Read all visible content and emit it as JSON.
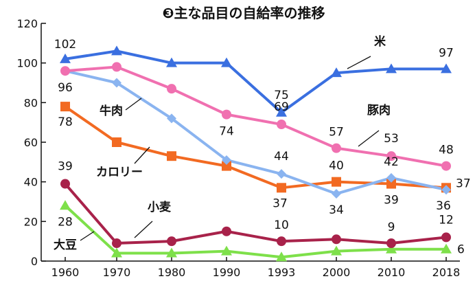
{
  "chart_data": {
    "type": "line",
    "title": "❸主な品目の自給率の推移",
    "x": [
      "1960",
      "1970",
      "1980",
      "1990",
      "1993",
      "2000",
      "2010",
      "2018"
    ],
    "ylim": [
      0,
      120
    ],
    "yticks": [
      "0",
      "20",
      "40",
      "60",
      "80",
      "100",
      "120"
    ],
    "grid": false,
    "series": [
      {
        "name": "米",
        "color": "#3a6fe0",
        "marker": "triangle",
        "values": [
          102,
          106,
          100,
          100,
          75,
          95,
          97,
          97
        ]
      },
      {
        "name": "豚肉",
        "color": "#f070b0",
        "marker": "circle",
        "values": [
          96,
          98,
          87,
          74,
          69,
          57,
          53,
          48
        ]
      },
      {
        "name": "牛肉",
        "color": "#8ab4f0",
        "marker": "diamond",
        "values": [
          96,
          90,
          72,
          51,
          44,
          34,
          42,
          36
        ]
      },
      {
        "name": "カロリー",
        "color": "#f26a22",
        "marker": "square",
        "values": [
          78,
          60,
          53,
          48,
          37,
          40,
          39,
          37
        ]
      },
      {
        "name": "小麦",
        "color": "#a8224a",
        "marker": "circle",
        "values": [
          39,
          9,
          10,
          15,
          10,
          11,
          9,
          12
        ]
      },
      {
        "name": "大豆",
        "color": "#7ee04a",
        "marker": "triangle",
        "values": [
          28,
          4,
          4,
          5,
          2,
          5,
          6,
          6
        ]
      }
    ],
    "data_labels": [
      {
        "series": 0,
        "index": 0,
        "text": "102"
      },
      {
        "series": 0,
        "index": 4,
        "text": "75"
      },
      {
        "series": 0,
        "index": 7,
        "text": "97"
      },
      {
        "series": 1,
        "index": 0,
        "text": "96"
      },
      {
        "series": 1,
        "index": 3,
        "text": "74"
      },
      {
        "series": 1,
        "index": 4,
        "text": "69"
      },
      {
        "series": 1,
        "index": 5,
        "text": "57"
      },
      {
        "series": 1,
        "index": 6,
        "text": "53"
      },
      {
        "series": 1,
        "index": 7,
        "text": "48"
      },
      {
        "series": 2,
        "index": 4,
        "text": "44"
      },
      {
        "series": 2,
        "index": 5,
        "text": "34"
      },
      {
        "series": 2,
        "index": 6,
        "text": "42"
      },
      {
        "series": 2,
        "index": 7,
        "text": "36"
      },
      {
        "series": 3,
        "index": 0,
        "text": "78"
      },
      {
        "series": 3,
        "index": 4,
        "text": "37"
      },
      {
        "series": 3,
        "index": 5,
        "text": "40"
      },
      {
        "series": 3,
        "index": 6,
        "text": "39"
      },
      {
        "series": 3,
        "index": 7,
        "text": "37"
      },
      {
        "series": 4,
        "index": 0,
        "text": "39"
      },
      {
        "series": 4,
        "index": 4,
        "text": "10"
      },
      {
        "series": 4,
        "index": 6,
        "text": "9"
      },
      {
        "series": 4,
        "index": 7,
        "text": "12"
      },
      {
        "series": 5,
        "index": 0,
        "text": "28"
      },
      {
        "series": 5,
        "index": 7,
        "text": "6"
      }
    ]
  }
}
